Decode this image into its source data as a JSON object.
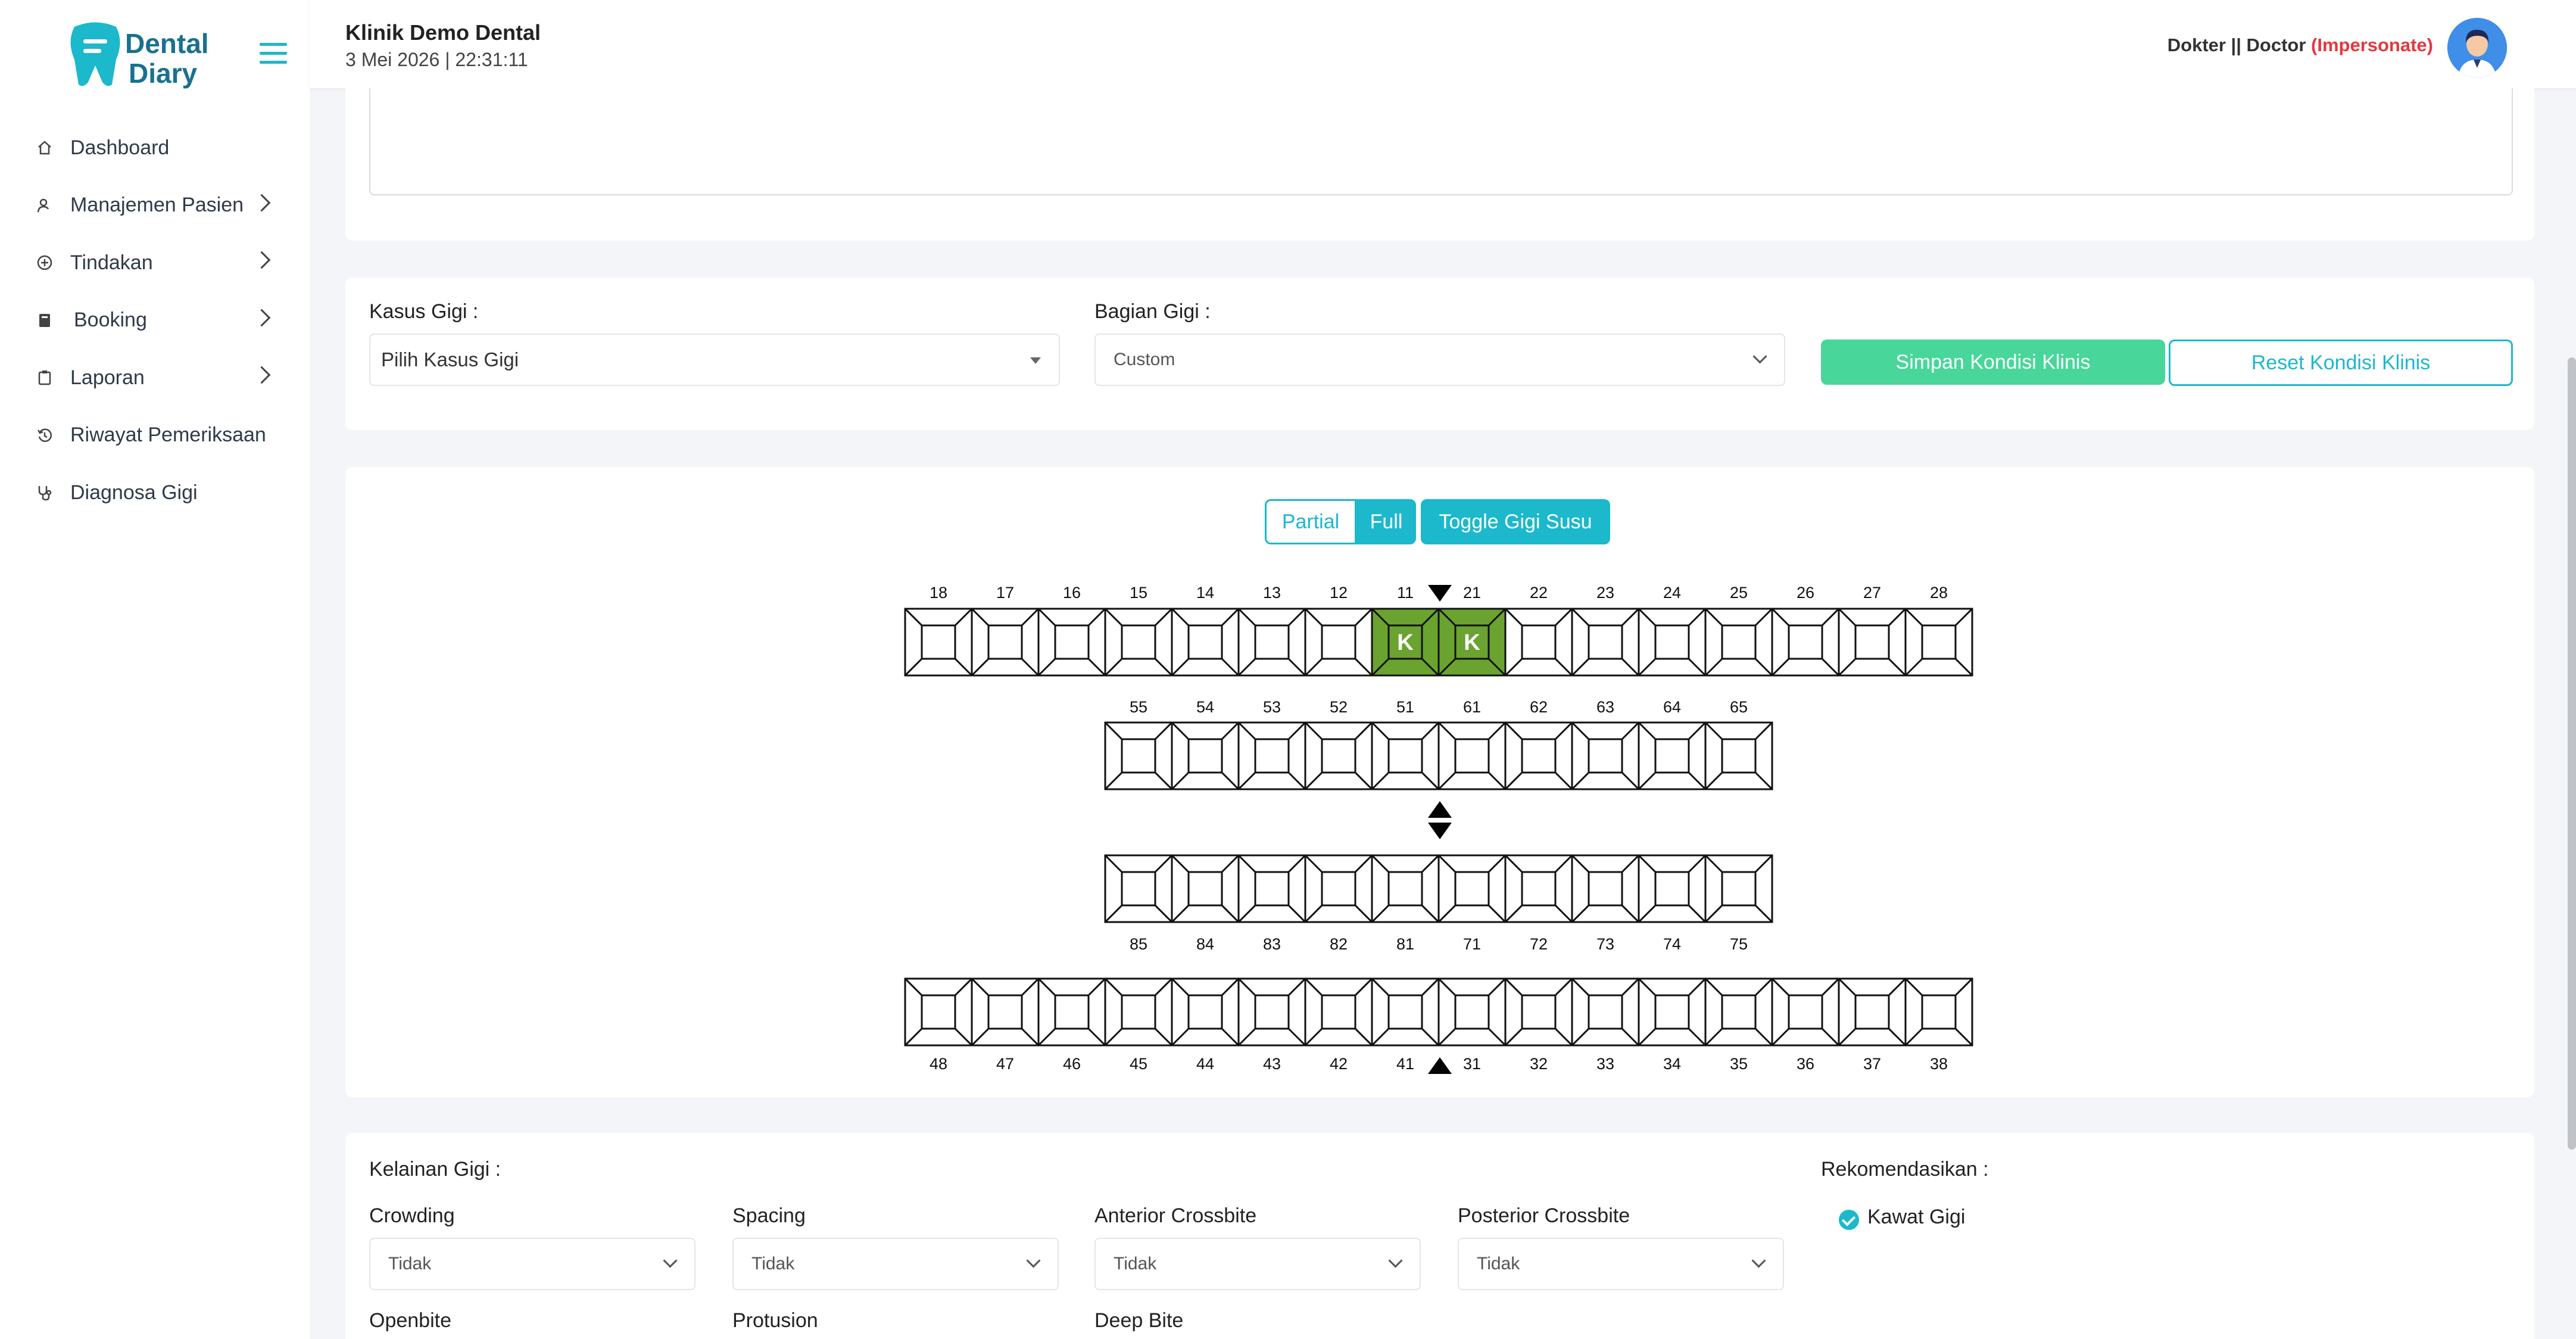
{
  "sidebar": {
    "logo_line1": "Dental",
    "logo_line2": "Diary",
    "items": [
      {
        "label": "Dashboard",
        "icon": "home-icon",
        "has_submenu": false
      },
      {
        "label": "Manajemen Pasien",
        "icon": "user-icon",
        "has_submenu": true
      },
      {
        "label": "Tindakan",
        "icon": "plus-circle-icon",
        "has_submenu": true
      },
      {
        "label": "Booking",
        "icon": "book-icon",
        "has_submenu": true
      },
      {
        "label": "Laporan",
        "icon": "clipboard-icon",
        "has_submenu": true
      },
      {
        "label": "Riwayat Pemeriksaan",
        "icon": "history-icon",
        "has_submenu": false
      },
      {
        "label": "Diagnosa Gigi",
        "icon": "stethoscope-icon",
        "has_submenu": false
      }
    ]
  },
  "header": {
    "clinic_name": "Klinik Demo Dental",
    "datetime": "3 Mei 2026 | 22:31:11",
    "user_role": "Dokter || Doctor ",
    "impersonate": "(Impersonate)"
  },
  "kondisi": {
    "kasus_label": "Kasus Gigi :",
    "kasus_value": "Pilih Kasus Gigi",
    "bagian_label": "Bagian Gigi :",
    "bagian_value": "Custom",
    "save_label": "Simpan Kondisi Klinis",
    "reset_label": "Reset Kondisi Klinis"
  },
  "odontogram": {
    "partial_label": "Partial",
    "full_label": "Full",
    "toggle_label": "Toggle Gigi Susu",
    "upper_permanent": [
      "18",
      "17",
      "16",
      "15",
      "14",
      "13",
      "12",
      "11",
      "21",
      "22",
      "23",
      "24",
      "25",
      "26",
      "27",
      "28"
    ],
    "upper_primary": [
      "55",
      "54",
      "53",
      "52",
      "51",
      "61",
      "62",
      "63",
      "64",
      "65"
    ],
    "lower_primary": [
      "85",
      "84",
      "83",
      "82",
      "81",
      "71",
      "72",
      "73",
      "74",
      "75"
    ],
    "lower_permanent": [
      "48",
      "47",
      "46",
      "45",
      "44",
      "43",
      "42",
      "41",
      "31",
      "32",
      "33",
      "34",
      "35",
      "36",
      "37",
      "38"
    ],
    "marked_teeth": {
      "11": "K",
      "21": "K"
    },
    "marked_color": "#6aa32f"
  },
  "kelainan": {
    "title": "Kelainan Gigi :",
    "fields": [
      {
        "label": "Crowding",
        "value": "Tidak"
      },
      {
        "label": "Spacing",
        "value": "Tidak"
      },
      {
        "label": "Anterior Crossbite",
        "value": "Tidak"
      },
      {
        "label": "Posterior Crossbite",
        "value": "Tidak"
      }
    ],
    "more_labels": [
      "Openbite",
      "Protusion",
      "Deep Bite"
    ],
    "rekomendasi_title": "Rekomendasikan :",
    "rekomendasi_item": "Kawat Gigi"
  },
  "colors": {
    "accent": "#1cb8cc",
    "save": "#49d69a",
    "impersonate": "#e3383f"
  }
}
